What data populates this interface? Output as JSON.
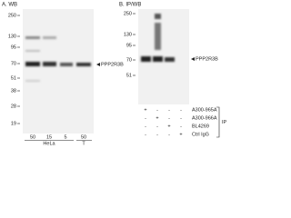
{
  "panels": [
    {
      "label": "A. WB",
      "markers": [
        250,
        130,
        95,
        70,
        51,
        38,
        28,
        19
      ],
      "target": "PPP2R3B",
      "lanes": [
        "50",
        "15",
        "5",
        "50"
      ],
      "samples": [
        "HeLa",
        "T"
      ]
    },
    {
      "label": "B. IP/WB",
      "markers": [
        250,
        130,
        95,
        70,
        51
      ],
      "target": "PPP2R3B",
      "table": {
        "rows": [
          {
            "name": "A300-965A",
            "marks": [
              "+",
              "-",
              "-",
              "-"
            ]
          },
          {
            "name": "A300-966A",
            "marks": [
              "-",
              "+",
              "-",
              "-"
            ]
          },
          {
            "name": "BL4269",
            "marks": [
              "-",
              "-",
              "+",
              "-"
            ]
          },
          {
            "name": "Ctrl IgG",
            "marks": [
              "-",
              "-",
              "-",
              "+"
            ]
          }
        ],
        "group": "IP"
      }
    }
  ]
}
